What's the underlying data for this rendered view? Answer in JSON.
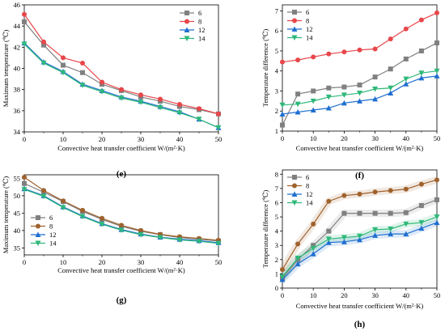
{
  "chart_data": [
    {
      "type": "line",
      "panel_label": "(e)",
      "xlabel": "Convective heat transfer coefficient W/(m²·K)",
      "ylabel": "Maximum temperature (℃)",
      "xlim": [
        0,
        50
      ],
      "ylim": [
        34,
        46
      ],
      "xticks": [
        "0",
        "10",
        "20",
        "30",
        "40",
        "50"
      ],
      "yticks": [
        "34",
        "36",
        "38",
        "40",
        "42",
        "44",
        "46"
      ],
      "legend": "top-right",
      "x": [
        0,
        5,
        10,
        15,
        20,
        25,
        30,
        35,
        40,
        45,
        50
      ],
      "series": [
        {
          "name": "6",
          "color": "#808080",
          "marker": "square",
          "values": [
            44.4,
            42.2,
            40.3,
            39.6,
            38.5,
            37.9,
            37.3,
            36.9,
            36.4,
            36.1,
            35.7
          ]
        },
        {
          "name": "8",
          "color": "#e8474b",
          "marker": "circle",
          "values": [
            45.1,
            42.5,
            41.0,
            40.5,
            38.7,
            38.0,
            37.5,
            37.1,
            36.6,
            36.2,
            35.7
          ]
        },
        {
          "name": "12",
          "color": "#1f6fd0",
          "marker": "triangle-up",
          "values": [
            42.4,
            40.6,
            39.7,
            38.5,
            37.9,
            37.3,
            36.9,
            36.4,
            35.9,
            35.2,
            34.4
          ]
        },
        {
          "name": "14",
          "color": "#2eb87a",
          "marker": "triangle-down",
          "values": [
            42.3,
            40.5,
            39.6,
            38.4,
            37.8,
            37.2,
            36.8,
            36.3,
            35.8,
            35.2,
            34.4
          ]
        }
      ]
    },
    {
      "type": "line",
      "panel_label": "(f)",
      "xlabel": "Convective heat transfer coefficient W/(m²·K)",
      "ylabel": "Temperature difference (℃)",
      "xlim": [
        0,
        50
      ],
      "ylim": [
        1,
        7.3
      ],
      "xticks": [
        "0",
        "10",
        "20",
        "30",
        "40",
        "50"
      ],
      "yticks": [
        "1",
        "2",
        "3",
        "4",
        "5",
        "6",
        "7"
      ],
      "legend": "top-left",
      "x": [
        0,
        5,
        10,
        15,
        20,
        25,
        30,
        35,
        40,
        45,
        50
      ],
      "series": [
        {
          "name": "6",
          "color": "#808080",
          "marker": "square",
          "values": [
            1.3,
            2.85,
            3.0,
            3.15,
            3.2,
            3.3,
            3.7,
            4.1,
            4.6,
            5.0,
            5.4
          ]
        },
        {
          "name": "8",
          "color": "#e8474b",
          "marker": "circle",
          "values": [
            4.45,
            4.55,
            4.7,
            4.85,
            4.95,
            5.05,
            5.1,
            5.6,
            6.1,
            6.55,
            6.9
          ]
        },
        {
          "name": "12",
          "color": "#1f6fd0",
          "marker": "triangle-up",
          "values": [
            1.85,
            1.95,
            2.05,
            2.15,
            2.4,
            2.5,
            2.6,
            2.9,
            3.35,
            3.65,
            3.75
          ]
        },
        {
          "name": "14",
          "color": "#2eb87a",
          "marker": "triangle-down",
          "values": [
            2.3,
            2.35,
            2.5,
            2.7,
            2.8,
            2.9,
            3.1,
            3.15,
            3.6,
            3.9,
            4.0
          ]
        }
      ]
    },
    {
      "type": "line",
      "panel_label": "(g)",
      "xlabel": "Convective heat transfer coefficient W/(m²·K)",
      "ylabel": "Maximum temperature (℃)",
      "xlim": [
        0,
        50
      ],
      "ylim": [
        33,
        56
      ],
      "xticks": [
        "0",
        "10",
        "20",
        "30",
        "40",
        "50"
      ],
      "yticks": [
        "35",
        "40",
        "45",
        "50",
        "55"
      ],
      "legend": "bottom-left",
      "x": [
        0,
        5,
        10,
        15,
        20,
        25,
        30,
        35,
        40,
        45,
        50
      ],
      "series": [
        {
          "name": "6",
          "color": "#808080",
          "marker": "square",
          "values": [
            53.5,
            51.0,
            48.3,
            45.5,
            43.2,
            41.2,
            39.8,
            38.8,
            38.0,
            37.5,
            37.0
          ]
        },
        {
          "name": "8",
          "color": "#a0622d",
          "marker": "circle",
          "values": [
            55.3,
            51.5,
            48.5,
            45.8,
            43.5,
            41.5,
            40.0,
            38.9,
            38.2,
            37.7,
            37.2
          ]
        },
        {
          "name": "12",
          "color": "#1f6fd0",
          "marker": "triangle-up",
          "values": [
            52.0,
            50.0,
            46.8,
            44.2,
            42.0,
            40.3,
            39.0,
            38.1,
            37.5,
            37.1,
            36.5
          ]
        },
        {
          "name": "14",
          "color": "#2eb87a",
          "marker": "triangle-down",
          "values": [
            51.8,
            49.8,
            46.6,
            44.0,
            41.8,
            40.1,
            38.8,
            38.0,
            37.3,
            36.9,
            36.3
          ]
        }
      ]
    },
    {
      "type": "line",
      "panel_label": "(h)",
      "xlabel": "Convective heat transfer coefficient W/(m²·K)",
      "ylabel": "Temperature difference (℃)",
      "xlim": [
        0,
        50
      ],
      "ylim": [
        0,
        8.3
      ],
      "xticks": [
        "0",
        "10",
        "20",
        "30",
        "40",
        "50"
      ],
      "yticks": [
        "0",
        "1",
        "2",
        "3",
        "4",
        "5",
        "6",
        "7",
        "8"
      ],
      "legend": "top-left",
      "x": [
        0,
        5,
        10,
        15,
        20,
        25,
        30,
        35,
        40,
        45,
        50
      ],
      "series": [
        {
          "name": "6",
          "color": "#808080",
          "marker": "square",
          "values": [
            0.7,
            2.0,
            3.0,
            4.0,
            5.25,
            5.25,
            5.25,
            5.25,
            5.3,
            5.8,
            6.2
          ]
        },
        {
          "name": "8",
          "color": "#a0622d",
          "marker": "circle",
          "values": [
            1.3,
            3.1,
            4.5,
            6.1,
            6.5,
            6.6,
            6.75,
            6.85,
            6.95,
            7.3,
            7.6
          ]
        },
        {
          "name": "12",
          "color": "#1f6fd0",
          "marker": "triangle-up",
          "values": [
            0.6,
            1.7,
            2.4,
            3.2,
            3.25,
            3.4,
            3.7,
            3.8,
            3.8,
            4.2,
            4.6
          ]
        },
        {
          "name": "14",
          "color": "#2eb87a",
          "marker": "triangle-down",
          "values": [
            0.8,
            2.1,
            2.8,
            3.45,
            3.55,
            3.65,
            4.1,
            4.15,
            4.5,
            4.6,
            5.0
          ]
        }
      ]
    }
  ]
}
